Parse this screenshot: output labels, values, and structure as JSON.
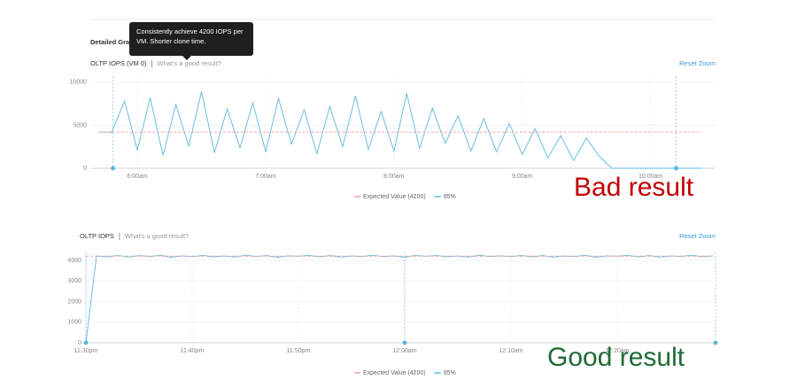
{
  "header": {
    "section_title": "Detailed Gra",
    "tooltip": "Consistently achieve 4200 IOPS per VM. Shorter clone time."
  },
  "chart_data": [
    {
      "type": "line",
      "title": "OLTP IOPS (VM 0)",
      "link": "What's a good result?",
      "reset": "Reset Zoom",
      "annotation": "Bad result",
      "annotation_color": "#c00000",
      "grid": true,
      "xlim": [
        5.64,
        10.5
      ],
      "xticks": [
        {
          "value": 6,
          "label": "6:00am"
        },
        {
          "value": 7,
          "label": "7:00am"
        },
        {
          "value": 8,
          "label": "8:00am"
        },
        {
          "value": 9,
          "label": "9:00am"
        },
        {
          "value": 10,
          "label": "10:00am"
        }
      ],
      "ylim": [
        0,
        10500
      ],
      "yticks": [
        0,
        5000,
        10000
      ],
      "x": [
        5.7,
        5.8,
        5.9,
        6.0,
        6.1,
        6.2,
        6.3,
        6.4,
        6.5,
        6.6,
        6.7,
        6.8,
        6.9,
        7.0,
        7.1,
        7.2,
        7.3,
        7.4,
        7.5,
        7.6,
        7.7,
        7.8,
        7.9,
        8.0,
        8.1,
        8.2,
        8.3,
        8.4,
        8.5,
        8.6,
        8.7,
        8.8,
        8.9,
        9.0,
        9.1,
        9.2,
        9.3,
        9.4,
        9.5,
        9.6,
        9.7,
        9.8,
        9.9,
        10.0,
        10.1,
        10.2,
        10.3,
        10.4
      ],
      "series": [
        {
          "name": "Expected Value (4200)",
          "color": "#f2a3a8",
          "dashed": true,
          "values": [
            4200,
            4200,
            4200,
            4200,
            4200,
            4200,
            4200,
            4200,
            4200,
            4200,
            4200,
            4200,
            4200,
            4200,
            4200,
            4200,
            4200,
            4200,
            4200,
            4200,
            4200,
            4200,
            4200,
            4200,
            4200,
            4200,
            4200,
            4200,
            4200,
            4200,
            4200,
            4200,
            4200,
            4200,
            4200,
            4200,
            4200,
            4200,
            4200,
            4200,
            4200,
            4200,
            4200,
            4200,
            4200,
            4200,
            4200,
            4200
          ]
        },
        {
          "name": "95%",
          "color": "#5bb8de",
          "values": [
            4200,
            4200,
            7800,
            2100,
            8200,
            1500,
            7400,
            2600,
            8900,
            1800,
            6900,
            2400,
            7600,
            1900,
            8100,
            2800,
            6800,
            1700,
            7200,
            2500,
            8400,
            2200,
            6600,
            2000,
            8700,
            2300,
            7000,
            2900,
            6100,
            2000,
            5800,
            1900,
            5200,
            1600,
            4600,
            1200,
            3800,
            900,
            3500,
            1400,
            0,
            0,
            0,
            0,
            0,
            0,
            0,
            0
          ]
        }
      ]
    },
    {
      "type": "line",
      "title": "OLTP IOPS",
      "link": "What's a good result?",
      "reset": "Reset Zoom",
      "annotation": "Good result",
      "annotation_color": "#1e6b36",
      "grid": true,
      "xlim": [
        1410,
        1469.25
      ],
      "xticks": [
        {
          "value": 1410,
          "label": "11:30pm"
        },
        {
          "value": 1420,
          "label": "11:40pm"
        },
        {
          "value": 1430,
          "label": "11:50pm"
        },
        {
          "value": 1440,
          "label": "12:00am"
        },
        {
          "value": 1450,
          "label": "12:10am"
        },
        {
          "value": 1460,
          "label": "12:20am"
        }
      ],
      "ylim": [
        0,
        4300
      ],
      "yticks": [
        0,
        1000,
        2000,
        3000,
        4000
      ],
      "x": [
        1410,
        1411,
        1412,
        1413,
        1414,
        1415,
        1416,
        1417,
        1418,
        1419,
        1420,
        1421,
        1422,
        1423,
        1424,
        1425,
        1426,
        1427,
        1428,
        1429,
        1430,
        1431,
        1432,
        1433,
        1434,
        1435,
        1436,
        1437,
        1438,
        1439,
        1440,
        1441,
        1442,
        1443,
        1444,
        1445,
        1446,
        1447,
        1448,
        1449,
        1450,
        1451,
        1452,
        1453,
        1454,
        1455,
        1456,
        1457,
        1458,
        1459,
        1460,
        1461,
        1462,
        1463,
        1464,
        1465,
        1466,
        1467,
        1468,
        1469
      ],
      "series": [
        {
          "name": "Expected Value (4200)",
          "color": "#f2a3a8",
          "dashed": true,
          "values": [
            4200,
            4200,
            4200,
            4200,
            4200,
            4200,
            4200,
            4200,
            4200,
            4200,
            4200,
            4200,
            4200,
            4200,
            4200,
            4200,
            4200,
            4200,
            4200,
            4200,
            4200,
            4200,
            4200,
            4200,
            4200,
            4200,
            4200,
            4200,
            4200,
            4200,
            4200,
            4200,
            4200,
            4200,
            4200,
            4200,
            4200,
            4200,
            4200,
            4200,
            4200,
            4200,
            4200,
            4200,
            4200,
            4200,
            4200,
            4200,
            4200,
            4200,
            4200,
            4200,
            4200,
            4200,
            4200,
            4200,
            4200,
            4200,
            4200,
            4200
          ]
        },
        {
          "name": "95%",
          "color": "#5bb8de",
          "values": [
            0,
            4210,
            4170,
            4240,
            4160,
            4230,
            4190,
            4250,
            4150,
            4220,
            4180,
            4240,
            4170,
            4210,
            4160,
            4250,
            4190,
            4230,
            4150,
            4220,
            4200,
            4240,
            4170,
            4230,
            4160,
            4210,
            4190,
            4250,
            4180,
            4220,
            4150,
            4240,
            4200,
            4230,
            4170,
            4210,
            4160,
            4250,
            4190,
            4220,
            4180,
            4240,
            4170,
            4230,
            4160,
            4210,
            4190,
            4250,
            4150,
            4220,
            4200,
            4240,
            4170,
            4230,
            4160,
            4210,
            4190,
            4250,
            4180,
            4220
          ]
        }
      ]
    }
  ]
}
